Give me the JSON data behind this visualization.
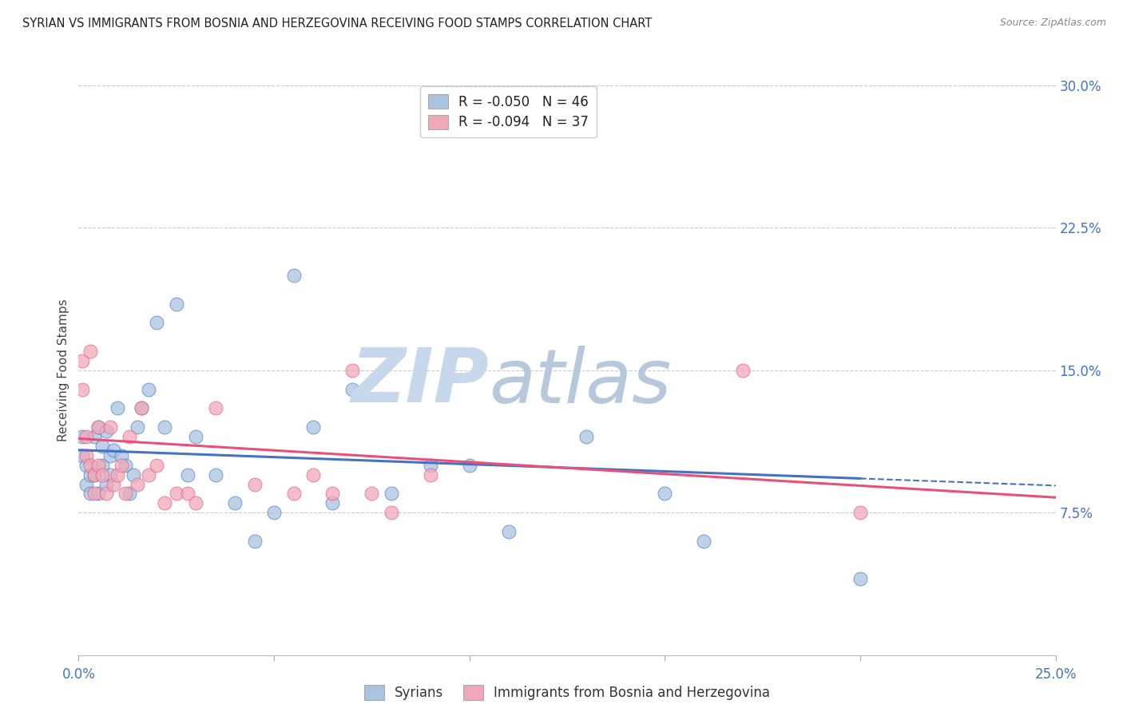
{
  "title": "SYRIAN VS IMMIGRANTS FROM BOSNIA AND HERZEGOVINA RECEIVING FOOD STAMPS CORRELATION CHART",
  "source": "Source: ZipAtlas.com",
  "ylabel": "Receiving Food Stamps",
  "xlim": [
    0.0,
    0.25
  ],
  "ylim": [
    0.0,
    0.3
  ],
  "xtick_positions": [
    0.0,
    0.05,
    0.1,
    0.15,
    0.2,
    0.25
  ],
  "xtick_labels": [
    "0.0%",
    "",
    "",
    "",
    "",
    "25.0%"
  ],
  "yticks_right": [
    0.075,
    0.15,
    0.225,
    0.3
  ],
  "ytick_labels_right": [
    "7.5%",
    "15.0%",
    "22.5%",
    "30.0%"
  ],
  "grid_color": "#cccccc",
  "background_color": "#ffffff",
  "watermark_zip": "ZIP",
  "watermark_atlas": "atlas",
  "watermark_color_zip": "#c8d8ec",
  "watermark_color_atlas": "#b8c8dc",
  "legend_r1": "R = -0.050",
  "legend_n1": "N = 46",
  "legend_r2": "R = -0.094",
  "legend_n2": "N = 37",
  "legend_label1": "Syrians",
  "legend_label2": "Immigrants from Bosnia and Herzegovina",
  "color_blue": "#a8c4e0",
  "color_pink": "#f0a8b8",
  "trend_color_blue": "#4472c4",
  "trend_color_pink": "#e8507a",
  "title_color": "#222222",
  "axis_label_color": "#4472c4",
  "syrians_x": [
    0.001,
    0.001,
    0.002,
    0.002,
    0.003,
    0.003,
    0.004,
    0.004,
    0.005,
    0.005,
    0.006,
    0.006,
    0.007,
    0.007,
    0.008,
    0.008,
    0.009,
    0.01,
    0.011,
    0.012,
    0.013,
    0.014,
    0.015,
    0.016,
    0.018,
    0.02,
    0.022,
    0.025,
    0.028,
    0.03,
    0.035,
    0.04,
    0.045,
    0.05,
    0.055,
    0.06,
    0.065,
    0.07,
    0.08,
    0.09,
    0.1,
    0.11,
    0.13,
    0.15,
    0.16,
    0.2
  ],
  "syrians_y": [
    0.105,
    0.115,
    0.1,
    0.09,
    0.095,
    0.085,
    0.115,
    0.095,
    0.12,
    0.085,
    0.11,
    0.1,
    0.09,
    0.118,
    0.105,
    0.095,
    0.108,
    0.13,
    0.105,
    0.1,
    0.085,
    0.095,
    0.12,
    0.13,
    0.14,
    0.175,
    0.12,
    0.185,
    0.095,
    0.115,
    0.095,
    0.08,
    0.06,
    0.075,
    0.2,
    0.12,
    0.08,
    0.14,
    0.085,
    0.1,
    0.1,
    0.065,
    0.115,
    0.085,
    0.06,
    0.04
  ],
  "bosnia_x": [
    0.001,
    0.001,
    0.002,
    0.002,
    0.003,
    0.003,
    0.004,
    0.004,
    0.005,
    0.005,
    0.006,
    0.007,
    0.008,
    0.009,
    0.01,
    0.011,
    0.012,
    0.013,
    0.015,
    0.016,
    0.018,
    0.02,
    0.022,
    0.025,
    0.028,
    0.03,
    0.035,
    0.045,
    0.055,
    0.06,
    0.065,
    0.07,
    0.075,
    0.08,
    0.09,
    0.17,
    0.2
  ],
  "bosnia_y": [
    0.155,
    0.14,
    0.115,
    0.105,
    0.16,
    0.1,
    0.095,
    0.085,
    0.12,
    0.1,
    0.095,
    0.085,
    0.12,
    0.09,
    0.095,
    0.1,
    0.085,
    0.115,
    0.09,
    0.13,
    0.095,
    0.1,
    0.08,
    0.085,
    0.085,
    0.08,
    0.13,
    0.09,
    0.085,
    0.095,
    0.085,
    0.15,
    0.085,
    0.075,
    0.095,
    0.15,
    0.075
  ],
  "trend_blue_x0": 0.0,
  "trend_blue_y0": 0.108,
  "trend_blue_x1": 0.2,
  "trend_blue_y1": 0.093,
  "trend_blue_dash_x0": 0.2,
  "trend_blue_dash_x1": 0.25,
  "trend_pink_x0": 0.0,
  "trend_pink_y0": 0.114,
  "trend_pink_x1": 0.25,
  "trend_pink_y1": 0.083
}
